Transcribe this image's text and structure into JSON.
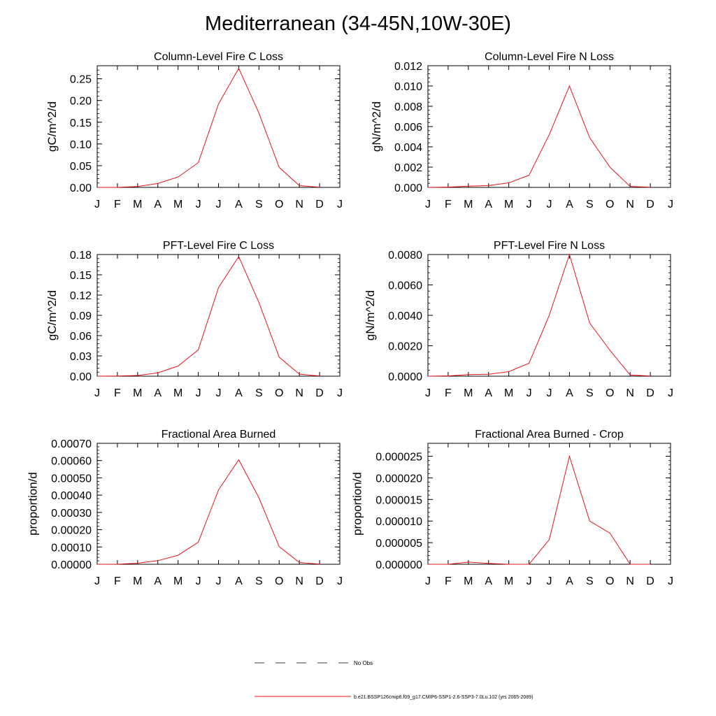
{
  "title": "Mediterranean (34-45N,10W-30E)",
  "month_labels": [
    "J",
    "F",
    "M",
    "A",
    "M",
    "J",
    "J",
    "A",
    "S",
    "O",
    "N",
    "D",
    "J"
  ],
  "legend": {
    "obs_label": "No Obs",
    "model_label": "b.e21.BSSP126cmip6.f09_g17.CMIP6-SSP1-2.6-SSP3-7.0Lu.102 (yrs 2065-2089)",
    "model_color": "#e8141c"
  },
  "chart_data": [
    {
      "type": "line",
      "title": "Column-Level Fire C Loss",
      "ylabel": "gC/m^2/d",
      "ylim": [
        0,
        0.28
      ],
      "yticks": [
        "0.00",
        "0.05",
        "0.10",
        "0.15",
        "0.20",
        "0.25"
      ],
      "yticks_values": [
        0,
        0.05,
        0.1,
        0.15,
        0.2,
        0.25
      ],
      "x": [
        "J",
        "F",
        "M",
        "A",
        "M",
        "J",
        "J",
        "A",
        "S",
        "O",
        "N",
        "D"
      ],
      "series": [
        {
          "values": [
            0.0,
            0.0002,
            0.002,
            0.009,
            0.024,
            0.057,
            0.192,
            0.274,
            0.171,
            0.046,
            0.004,
            0.0004
          ]
        }
      ]
    },
    {
      "type": "line",
      "title": "Column-Level Fire N Loss",
      "ylabel": "gN/m^2/d",
      "ylim": [
        0,
        0.012
      ],
      "yticks": [
        "0.000",
        "0.002",
        "0.004",
        "0.006",
        "0.008",
        "0.010",
        "0.012"
      ],
      "yticks_values": [
        0,
        0.002,
        0.004,
        0.006,
        0.008,
        0.01,
        0.012
      ],
      "x": [
        "J",
        "F",
        "M",
        "A",
        "M",
        "J",
        "J",
        "A",
        "S",
        "O",
        "N",
        "D"
      ],
      "series": [
        {
          "values": [
            0.0,
            3e-05,
            0.00012,
            0.00018,
            0.00045,
            0.0012,
            0.0052,
            0.01,
            0.0049,
            0.002,
            0.0001,
            2e-05
          ]
        }
      ]
    },
    {
      "type": "line",
      "title": "PFT-Level Fire C Loss",
      "ylabel": "gC/m^2/d",
      "ylim": [
        0,
        0.18
      ],
      "yticks": [
        "0.00",
        "0.03",
        "0.06",
        "0.09",
        "0.12",
        "0.15",
        "0.18"
      ],
      "yticks_values": [
        0,
        0.03,
        0.06,
        0.09,
        0.12,
        0.15,
        0.18
      ],
      "x": [
        "J",
        "F",
        "M",
        "A",
        "M",
        "J",
        "J",
        "A",
        "S",
        "O",
        "N",
        "D"
      ],
      "series": [
        {
          "values": [
            0.0,
            0.0002,
            0.001,
            0.005,
            0.015,
            0.039,
            0.131,
            0.177,
            0.109,
            0.028,
            0.003,
            0.0003
          ]
        }
      ]
    },
    {
      "type": "line",
      "title": "PFT-Level Fire N Loss",
      "ylabel": "gN/m^2/d",
      "ylim": [
        0,
        0.008
      ],
      "yticks": [
        "0.0000",
        "0.0020",
        "0.0040",
        "0.0060",
        "0.0080"
      ],
      "yticks_values": [
        0,
        0.002,
        0.004,
        0.006,
        0.008
      ],
      "x": [
        "J",
        "F",
        "M",
        "A",
        "M",
        "J",
        "J",
        "A",
        "S",
        "O",
        "N",
        "D"
      ],
      "series": [
        {
          "values": [
            0.0,
            2e-05,
            0.0001,
            0.00013,
            0.0003,
            0.00085,
            0.004,
            0.008,
            0.0035,
            0.0017,
            8e-05,
            1e-05
          ]
        }
      ]
    },
    {
      "type": "line",
      "title": "Fractional Area Burned",
      "ylabel": "proportion/d",
      "ylim": [
        0,
        0.0007
      ],
      "yticks": [
        "0.00000",
        "0.00010",
        "0.00020",
        "0.00030",
        "0.00040",
        "0.00050",
        "0.00060",
        "0.00070"
      ],
      "yticks_values": [
        0,
        0.0001,
        0.0002,
        0.0003,
        0.0004,
        0.0005,
        0.0006,
        0.0007
      ],
      "x": [
        "J",
        "F",
        "M",
        "A",
        "M",
        "J",
        "J",
        "A",
        "S",
        "O",
        "N",
        "D"
      ],
      "series": [
        {
          "values": [
            0.0,
            5e-07,
            6e-06,
            2.1e-05,
            5.2e-05,
            0.000128,
            0.00043,
            0.000605,
            0.000385,
            0.000102,
            1e-05,
            1e-06
          ]
        }
      ]
    },
    {
      "type": "line",
      "title": "Fractional Area Burned - Crop",
      "ylabel": "proportion/d",
      "ylim": [
        0,
        2.8e-05
      ],
      "yticks": [
        "0.000000",
        "0.000005",
        "0.000010",
        "0.000015",
        "0.000020",
        "0.000025"
      ],
      "yticks_values": [
        0,
        5e-06,
        1e-05,
        1.5e-05,
        2e-05,
        2.5e-05
      ],
      "x": [
        "J",
        "F",
        "M",
        "A",
        "M",
        "J",
        "J",
        "A",
        "S",
        "O",
        "N",
        "D"
      ],
      "series": [
        {
          "values": [
            0.0,
            0.0,
            5e-07,
            2e-07,
            0.0,
            0.0,
            5.7e-06,
            2.5e-05,
            1e-05,
            7.2e-06,
            0.0,
            0.0
          ]
        }
      ]
    }
  ]
}
